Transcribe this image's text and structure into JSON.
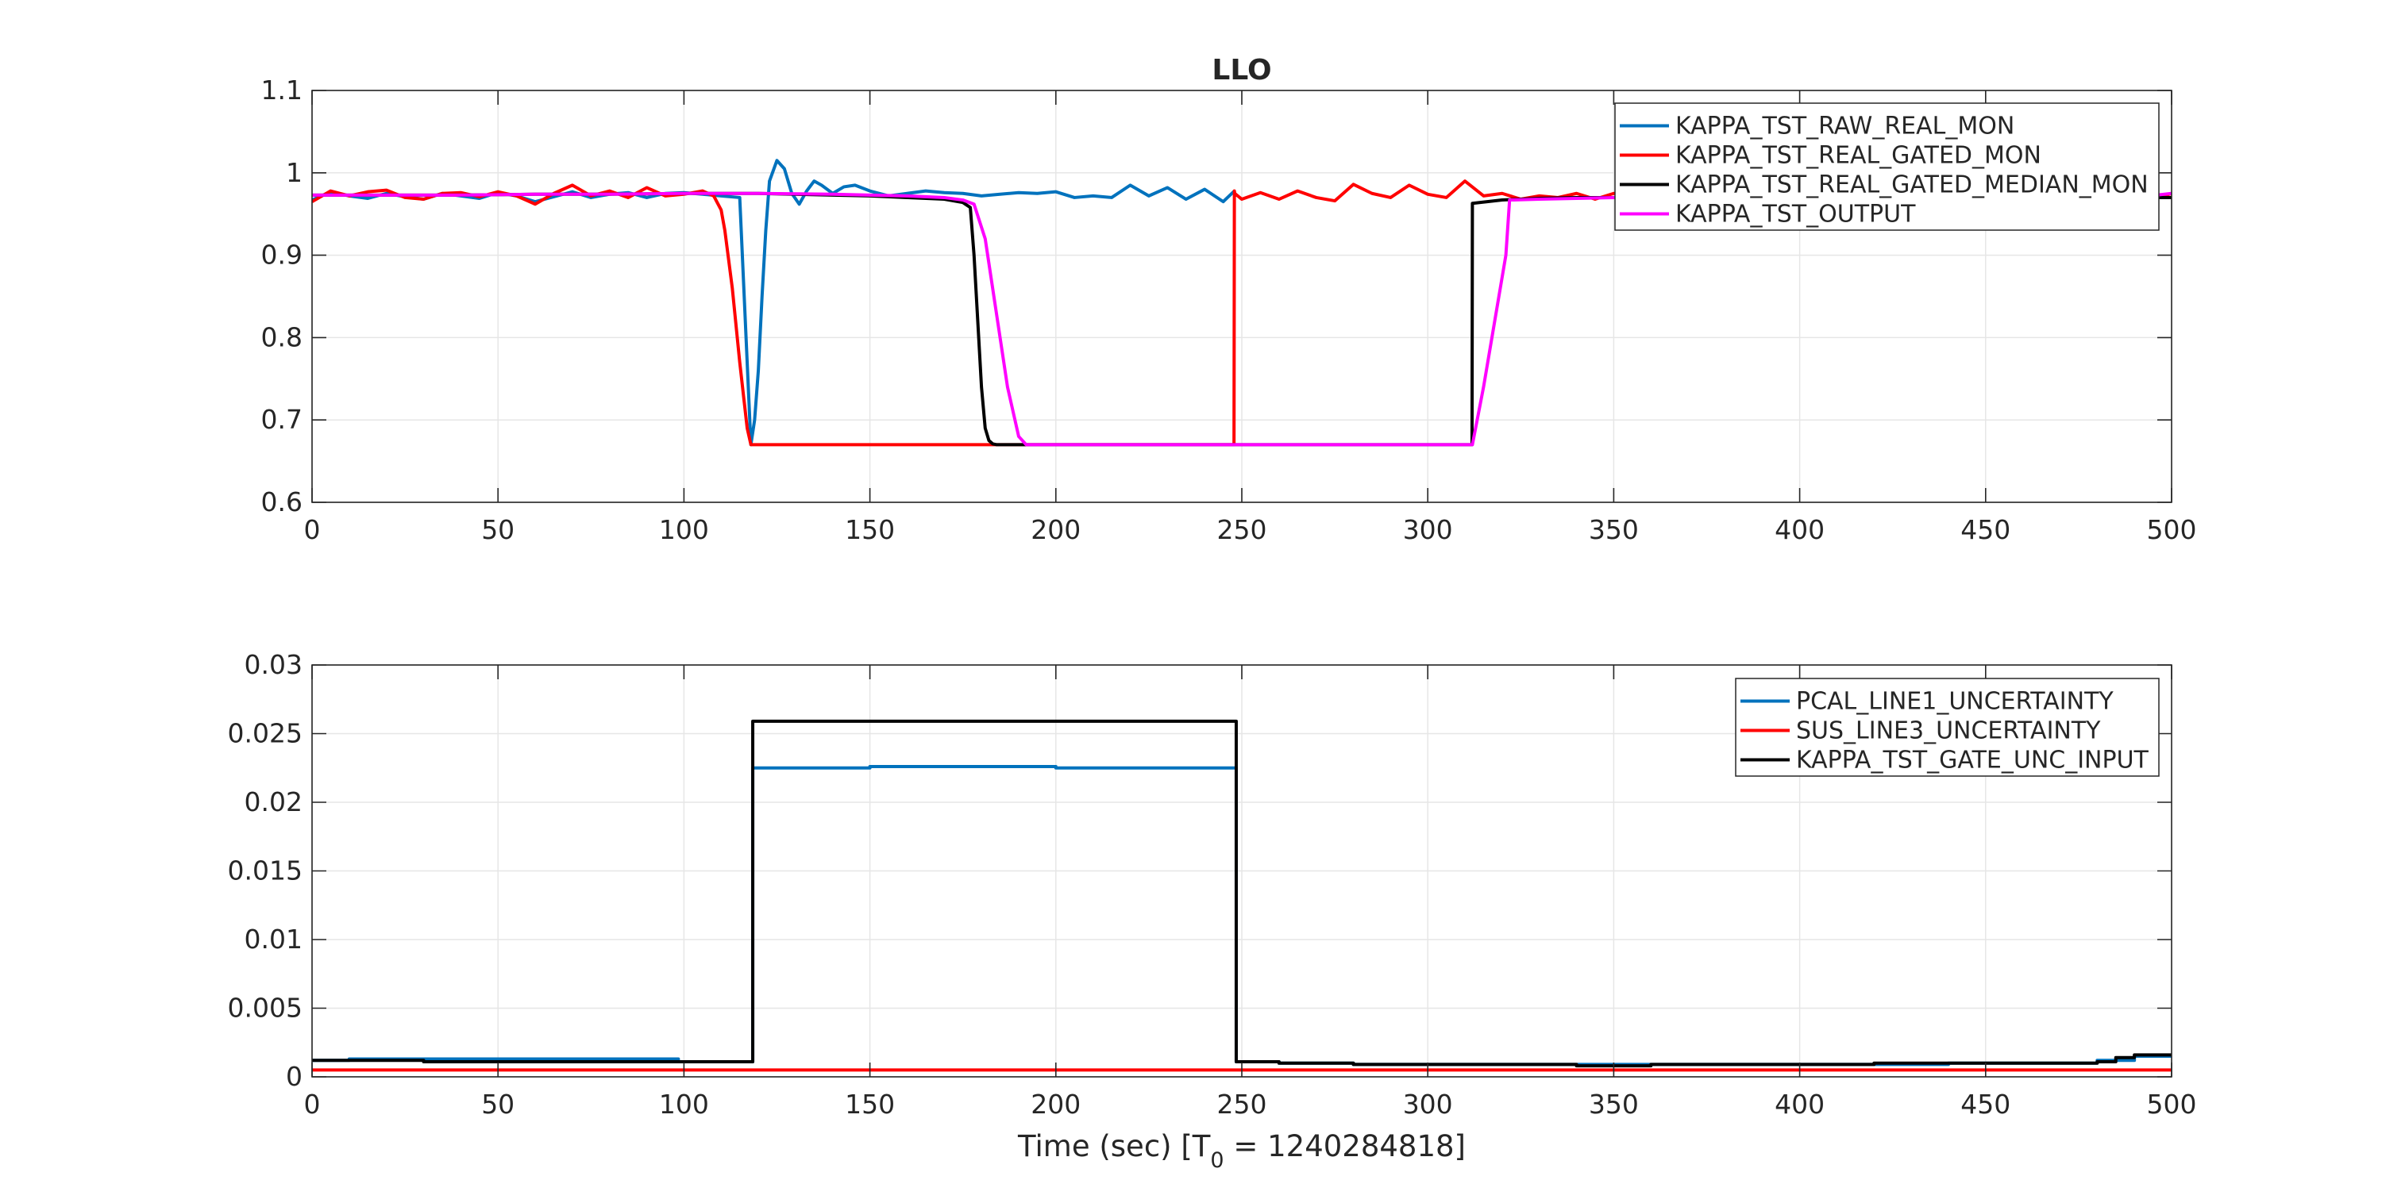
{
  "chart_data": [
    {
      "type": "line",
      "title": "LLO",
      "xlabel": "",
      "ylabel": "",
      "xlim": [
        0,
        500
      ],
      "ylim": [
        0.6,
        1.1
      ],
      "xticks": [
        0,
        50,
        100,
        150,
        200,
        250,
        300,
        350,
        400,
        450,
        500
      ],
      "yticks": [
        0.6,
        0.7,
        0.8,
        0.9,
        1,
        1.1
      ],
      "xtick_labels": [
        "0",
        "50",
        "100",
        "150",
        "200",
        "250",
        "300",
        "350",
        "400",
        "450",
        "500"
      ],
      "ytick_labels": [
        "0.6",
        "0.7",
        "0.8",
        "0.9",
        "1",
        "1.1"
      ],
      "grid": true,
      "legend_position": "top-right",
      "series": [
        {
          "name": "KAPPA_TST_RAW_REAL_MON",
          "color": "#0072BD",
          "x": [
            0,
            5,
            10,
            15,
            20,
            25,
            30,
            35,
            40,
            45,
            50,
            55,
            60,
            65,
            70,
            75,
            80,
            85,
            90,
            95,
            100,
            105,
            110,
            115,
            118,
            119,
            120,
            121,
            122,
            123,
            125,
            127,
            129,
            131,
            133,
            135,
            137,
            140,
            143,
            146,
            150,
            155,
            160,
            165,
            170,
            175,
            180,
            185,
            190,
            195,
            200,
            205,
            210,
            215,
            220,
            225,
            230,
            235,
            240,
            245,
            248
          ],
          "y": [
            0.967,
            0.977,
            0.972,
            0.969,
            0.975,
            0.971,
            0.968,
            0.975,
            0.972,
            0.969,
            0.976,
            0.972,
            0.965,
            0.971,
            0.977,
            0.97,
            0.974,
            0.976,
            0.97,
            0.975,
            0.976,
            0.974,
            0.972,
            0.97,
            0.67,
            0.7,
            0.76,
            0.85,
            0.93,
            0.99,
            1.015,
            1.005,
            0.975,
            0.962,
            0.978,
            0.99,
            0.985,
            0.975,
            0.983,
            0.985,
            0.978,
            0.972,
            0.975,
            0.978,
            0.976,
            0.975,
            0.972,
            0.974,
            0.976,
            0.975,
            0.977,
            0.97,
            0.972,
            0.97,
            0.985,
            0.972,
            0.982,
            0.968,
            0.98,
            0.965,
            0.978
          ]
        },
        {
          "name": "KAPPA_TST_REAL_GATED_MON",
          "color": "#FF0000",
          "x": [
            0,
            5,
            10,
            15,
            20,
            25,
            30,
            35,
            40,
            45,
            50,
            55,
            60,
            65,
            70,
            75,
            80,
            85,
            90,
            95,
            100,
            105,
            108,
            110,
            111,
            113,
            115,
            117,
            118,
            120,
            130,
            140,
            150,
            160,
            170,
            180,
            190,
            200,
            210,
            220,
            230,
            240,
            247.9,
            248,
            248.1,
            250,
            255,
            260,
            265,
            270,
            275,
            280,
            285,
            290,
            295,
            300,
            305,
            310,
            315,
            320,
            325,
            330,
            335,
            340,
            345,
            350,
            355,
            360,
            365,
            370,
            375,
            380,
            385,
            390,
            395,
            400,
            405,
            410,
            415,
            420,
            425,
            430,
            435,
            440,
            445,
            450,
            455,
            460,
            465,
            470,
            475,
            480,
            485,
            490,
            495,
            500
          ],
          "y": [
            0.965,
            0.978,
            0.972,
            0.977,
            0.979,
            0.97,
            0.968,
            0.975,
            0.976,
            0.971,
            0.977,
            0.972,
            0.962,
            0.975,
            0.985,
            0.972,
            0.978,
            0.97,
            0.982,
            0.972,
            0.974,
            0.978,
            0.972,
            0.955,
            0.93,
            0.86,
            0.77,
            0.69,
            0.67,
            0.67,
            0.67,
            0.67,
            0.67,
            0.67,
            0.67,
            0.67,
            0.67,
            0.67,
            0.67,
            0.67,
            0.67,
            0.67,
            0.67,
            0.978,
            0.975,
            0.968,
            0.976,
            0.968,
            0.978,
            0.97,
            0.966,
            0.986,
            0.975,
            0.97,
            0.985,
            0.974,
            0.97,
            0.99,
            0.972,
            0.975,
            0.968,
            0.972,
            0.97,
            0.975,
            0.968,
            0.975,
            0.972,
            0.97,
            0.968,
            0.975,
            0.972,
            0.97,
            0.968,
            0.978,
            0.972,
            0.97,
            0.975,
            0.968,
            0.972,
            0.975,
            0.97,
            0.968,
            0.975,
            0.97,
            0.972,
            0.975,
            0.968,
            0.97,
            0.972,
            0.975,
            0.97,
            0.968,
            0.975,
            0.97,
            0.968,
            0.975
          ]
        },
        {
          "name": "KAPPA_TST_REAL_GATED_MEDIAN_MON",
          "color": "#000000",
          "x": [
            0,
            20,
            40,
            60,
            80,
            100,
            120,
            140,
            150,
            160,
            170,
            175,
            177,
            178,
            179,
            180,
            181,
            182,
            183,
            184,
            190,
            200,
            210,
            220,
            230,
            240,
            250,
            260,
            270,
            280,
            290,
            300,
            311.9,
            312,
            320,
            330,
            340,
            350,
            360,
            370,
            380,
            390,
            400,
            410,
            420,
            430,
            440,
            450,
            460,
            470,
            480,
            490,
            500
          ],
          "y": [
            0.973,
            0.973,
            0.973,
            0.974,
            0.974,
            0.975,
            0.975,
            0.973,
            0.972,
            0.97,
            0.968,
            0.964,
            0.958,
            0.9,
            0.82,
            0.74,
            0.69,
            0.675,
            0.671,
            0.67,
            0.67,
            0.67,
            0.67,
            0.67,
            0.67,
            0.67,
            0.67,
            0.67,
            0.67,
            0.67,
            0.67,
            0.67,
            0.67,
            0.963,
            0.967,
            0.969,
            0.97,
            0.97,
            0.97,
            0.97,
            0.97,
            0.97,
            0.97,
            0.97,
            0.97,
            0.97,
            0.97,
            0.97,
            0.97,
            0.97,
            0.97,
            0.97,
            0.97
          ]
        },
        {
          "name": "KAPPA_TST_OUTPUT",
          "color": "#FF00FF",
          "x": [
            0,
            20,
            40,
            60,
            80,
            100,
            120,
            140,
            150,
            160,
            170,
            175,
            178,
            181,
            184,
            187,
            190,
            192,
            200,
            210,
            220,
            230,
            240,
            250,
            260,
            270,
            280,
            290,
            300,
            312,
            315,
            318,
            321,
            322,
            330,
            340,
            350,
            360,
            370,
            380,
            390,
            400,
            410,
            420,
            430,
            440,
            450,
            460,
            470,
            480,
            490,
            500
          ],
          "y": [
            0.973,
            0.973,
            0.973,
            0.974,
            0.974,
            0.975,
            0.975,
            0.974,
            0.973,
            0.972,
            0.97,
            0.967,
            0.962,
            0.92,
            0.83,
            0.74,
            0.68,
            0.67,
            0.67,
            0.67,
            0.67,
            0.67,
            0.67,
            0.67,
            0.67,
            0.67,
            0.67,
            0.67,
            0.67,
            0.67,
            0.74,
            0.82,
            0.9,
            0.967,
            0.968,
            0.969,
            0.97,
            0.97,
            0.97,
            0.97,
            0.97,
            0.97,
            0.97,
            0.97,
            0.97,
            0.97,
            0.97,
            0.97,
            0.97,
            0.97,
            0.97,
            0.975
          ]
        }
      ]
    },
    {
      "type": "line",
      "title": "",
      "xlabel": "Time (sec) [T",
      "xlabel_subscript": "0",
      "xlabel_suffix": " = 1240284818]",
      "ylabel": "",
      "xlim": [
        0,
        500
      ],
      "ylim": [
        0,
        0.03
      ],
      "xticks": [
        0,
        50,
        100,
        150,
        200,
        250,
        300,
        350,
        400,
        450,
        500
      ],
      "yticks": [
        0,
        0.005,
        0.01,
        0.015,
        0.02,
        0.025,
        0.03
      ],
      "xtick_labels": [
        "0",
        "50",
        "100",
        "150",
        "200",
        "250",
        "300",
        "350",
        "400",
        "450",
        "500"
      ],
      "ytick_labels": [
        "0",
        "0.005",
        "0.01",
        "0.015",
        "0.02",
        "0.025",
        "0.03"
      ],
      "grid": true,
      "legend_position": "top-right",
      "step": true,
      "series": [
        {
          "name": "PCAL_LINE1_UNCERTAINTY",
          "color": "#0072BD",
          "x": [
            0,
            10,
            30,
            60,
            98,
            98.5,
            118,
            118.5,
            150,
            200,
            248,
            248.5,
            260,
            280,
            300,
            330,
            350,
            380,
            400,
            440,
            450,
            480,
            490,
            500
          ],
          "y": [
            0.0012,
            0.0013,
            0.0013,
            0.0013,
            0.0013,
            0.0011,
            0.0011,
            0.0225,
            0.0226,
            0.0225,
            0.0225,
            0.0011,
            0.001,
            0.0009,
            0.0009,
            0.0009,
            0.0009,
            0.0009,
            0.0009,
            0.001,
            0.001,
            0.0012,
            0.0015,
            0.0015
          ]
        },
        {
          "name": "SUS_LINE3_UNCERTAINTY",
          "color": "#FF0000",
          "x": [
            0,
            500
          ],
          "y": [
            0.0005,
            0.0005
          ]
        },
        {
          "name": "KAPPA_TST_GATE_UNC_INPUT",
          "color": "#000000",
          "x": [
            0,
            10,
            20,
            30,
            60,
            100,
            118,
            118.5,
            150,
            200,
            248,
            248.5,
            260,
            280,
            300,
            320,
            340,
            360,
            380,
            400,
            420,
            440,
            460,
            480,
            485,
            490,
            500
          ],
          "y": [
            0.0012,
            0.0012,
            0.0012,
            0.0011,
            0.0011,
            0.0011,
            0.0011,
            0.0259,
            0.0259,
            0.0259,
            0.0259,
            0.0011,
            0.001,
            0.0009,
            0.0009,
            0.0009,
            0.0008,
            0.0009,
            0.0009,
            0.0009,
            0.001,
            0.001,
            0.001,
            0.0011,
            0.0014,
            0.0016,
            0.0016
          ]
        }
      ]
    }
  ]
}
